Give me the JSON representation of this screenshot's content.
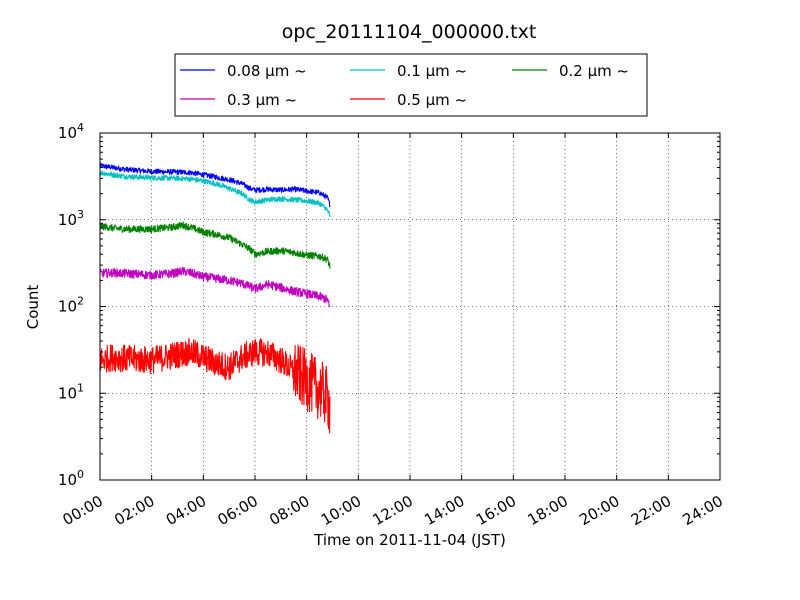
{
  "chart_data": {
    "type": "line",
    "title": "opc_20111104_000000.txt",
    "xlabel": "Time on 2011-11-04 (JST)",
    "ylabel": "Count",
    "x_unit": "hours",
    "xlim": [
      0,
      24
    ],
    "ylim": [
      1,
      10000
    ],
    "yscale": "log",
    "grid": true,
    "legend_position": "top-center, above plot",
    "x_ticks": [
      {
        "value": 0,
        "label": "00:00"
      },
      {
        "value": 2,
        "label": "02:00"
      },
      {
        "value": 4,
        "label": "04:00"
      },
      {
        "value": 6,
        "label": "06:00"
      },
      {
        "value": 8,
        "label": "08:00"
      },
      {
        "value": 10,
        "label": "10:00"
      },
      {
        "value": 12,
        "label": "12:00"
      },
      {
        "value": 14,
        "label": "14:00"
      },
      {
        "value": 16,
        "label": "16:00"
      },
      {
        "value": 18,
        "label": "18:00"
      },
      {
        "value": 20,
        "label": "20:00"
      },
      {
        "value": 22,
        "label": "22:00"
      },
      {
        "value": 24,
        "label": "24:00"
      }
    ],
    "y_ticks": [
      {
        "value": 1,
        "base": "10",
        "exp": "0"
      },
      {
        "value": 10,
        "base": "10",
        "exp": "1"
      },
      {
        "value": 100,
        "base": "10",
        "exp": "2"
      },
      {
        "value": 1000,
        "base": "10",
        "exp": "3"
      },
      {
        "value": 10000,
        "base": "10",
        "exp": "4"
      }
    ],
    "series": [
      {
        "name": "0.08 μm ~",
        "color": "#0000ff",
        "noise": 0.03,
        "x": [
          0,
          0.5,
          1,
          2,
          3,
          3.5,
          4,
          4.5,
          5,
          5.5,
          5.8,
          6,
          6.5,
          7,
          7.5,
          8,
          8.5,
          8.8,
          8.9
        ],
        "values": [
          4200,
          4000,
          3800,
          3600,
          3550,
          3500,
          3300,
          3100,
          2900,
          2600,
          2300,
          2200,
          2250,
          2200,
          2250,
          2150,
          2050,
          1800,
          1500
        ]
      },
      {
        "name": "0.1 μm ~",
        "color": "#00bfbf",
        "noise": 0.03,
        "x": [
          0,
          0.5,
          1,
          2,
          3,
          3.5,
          4,
          4.5,
          5,
          5.5,
          5.8,
          6,
          6.5,
          7,
          7.5,
          8,
          8.5,
          8.8,
          8.9
        ],
        "values": [
          3500,
          3300,
          3150,
          3050,
          3000,
          2950,
          2800,
          2600,
          2300,
          2000,
          1700,
          1600,
          1700,
          1750,
          1700,
          1650,
          1550,
          1300,
          1100
        ]
      },
      {
        "name": "0.2 μm ~",
        "color": "#008000",
        "noise": 0.04,
        "x": [
          0,
          0.5,
          1,
          2,
          2.8,
          3.2,
          3.6,
          4,
          4.5,
          5,
          5.5,
          5.8,
          6,
          6.5,
          7,
          7.5,
          8,
          8.5,
          8.8,
          8.9
        ],
        "values": [
          850,
          800,
          780,
          780,
          820,
          870,
          800,
          720,
          680,
          620,
          520,
          460,
          400,
          430,
          440,
          420,
          390,
          380,
          350,
          290
        ]
      },
      {
        "name": "0.3 μm ~",
        "color": "#bf00bf",
        "noise": 0.05,
        "x": [
          0,
          0.5,
          1,
          2,
          2.8,
          3.2,
          3.6,
          4,
          4.5,
          5,
          5.5,
          5.8,
          6,
          6.5,
          7,
          7.5,
          8,
          8.5,
          8.8,
          8.9
        ],
        "values": [
          240,
          245,
          240,
          230,
          240,
          255,
          240,
          220,
          210,
          200,
          185,
          170,
          160,
          180,
          165,
          150,
          140,
          130,
          120,
          95
        ]
      },
      {
        "name": "0.5 μm ~",
        "color": "#ff0000",
        "noise": 0.16,
        "x": [
          0,
          0.5,
          1,
          2,
          3,
          3.5,
          4,
          4.5,
          5,
          5.5,
          6,
          6.5,
          7,
          7.5,
          8,
          8.5,
          8.8,
          8.9
        ],
        "values": [
          24,
          26,
          25,
          24,
          28,
          30,
          26,
          22,
          20,
          26,
          30,
          29,
          24,
          18,
          14,
          11,
          9,
          7
        ]
      }
    ]
  }
}
